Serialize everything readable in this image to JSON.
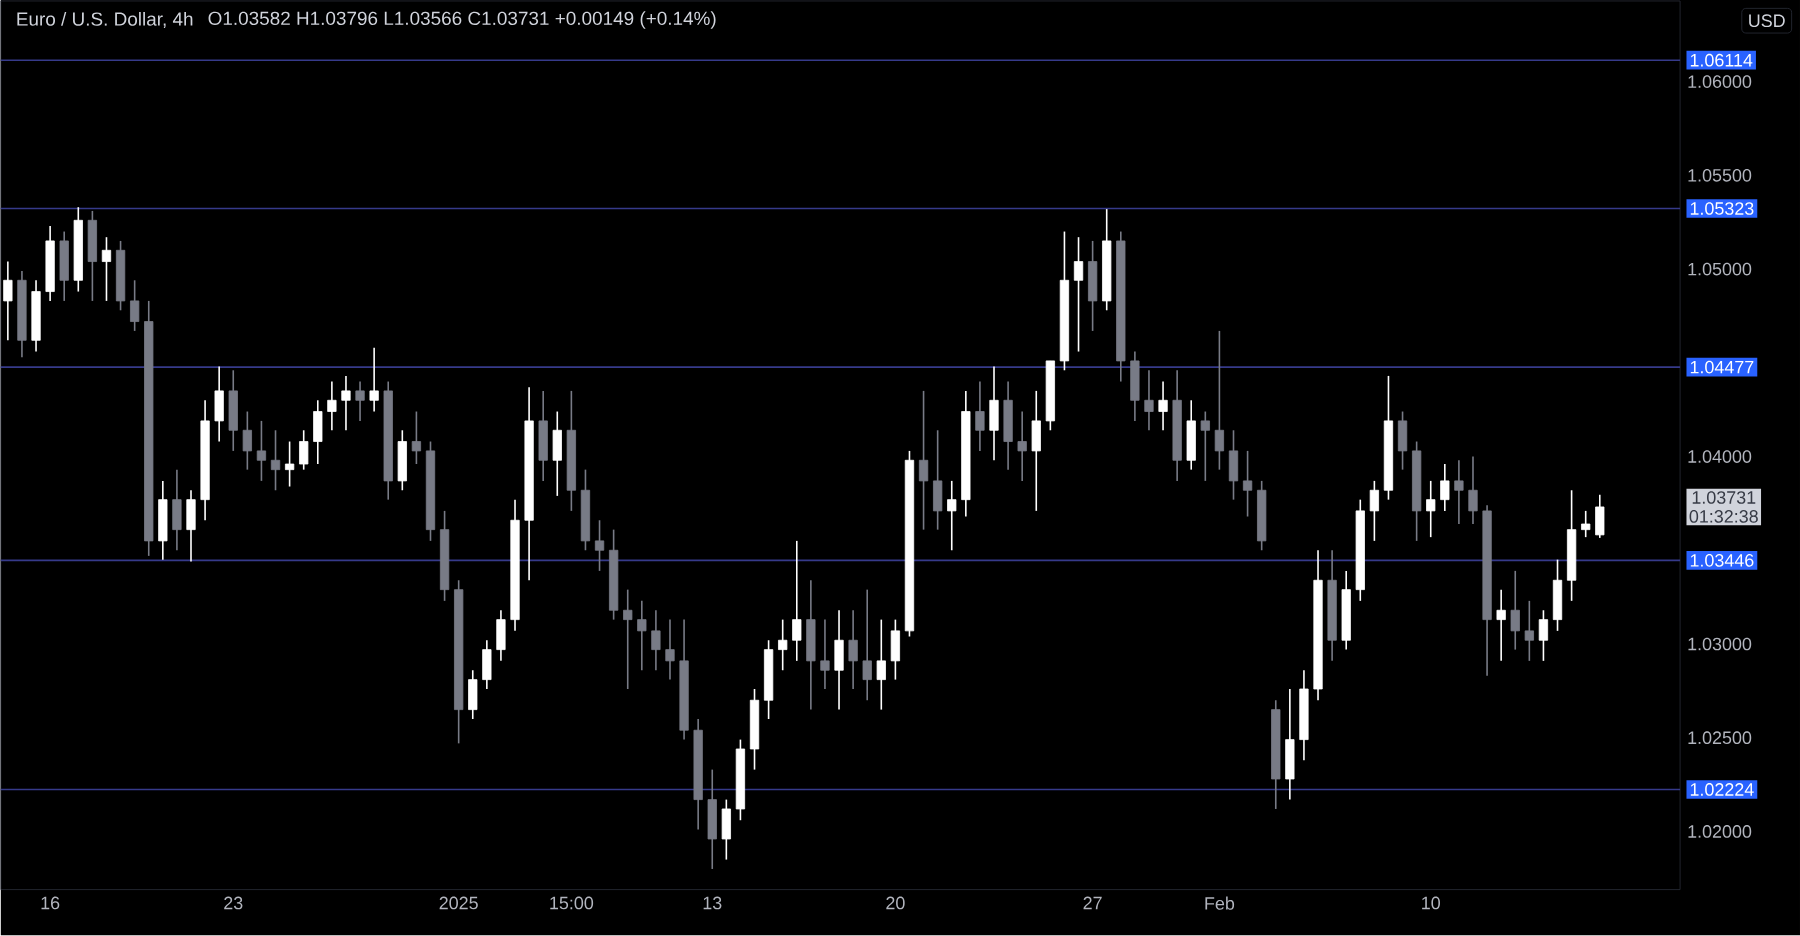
{
  "chart_data": {
    "type": "candlestick",
    "title": "Euro / U.S. Dollar, 4h",
    "subtitle": "O1.03582 H1.03796 L1.03566 C1.03731 +0.00149 (+0.14%)",
    "categories": [
      null,
      null,
      null,
      "16",
      null,
      null,
      null,
      null,
      null,
      null,
      null,
      null,
      null,
      null,
      null,
      null,
      "23",
      null,
      null,
      null,
      null,
      null,
      null,
      null,
      null,
      null,
      null,
      null,
      null,
      null,
      null,
      null,
      "2025",
      null,
      null,
      null,
      null,
      null,
      null,
      null,
      "15:00",
      null,
      null,
      null,
      null,
      null,
      null,
      null,
      null,
      null,
      "13",
      null,
      null,
      null,
      null,
      null,
      null,
      null,
      null,
      null,
      null,
      null,
      null,
      "20",
      null,
      null,
      null,
      null,
      null,
      null,
      null,
      null,
      null,
      null,
      null,
      null,
      null,
      "27",
      null,
      null,
      null,
      null,
      null,
      null,
      null,
      null,
      "Feb",
      null,
      null,
      null,
      null,
      null,
      null,
      null,
      null,
      null,
      null,
      null,
      null,
      null,
      null,
      "10",
      null,
      null,
      null,
      null,
      null,
      null,
      null,
      null,
      null,
      null,
      null,
      null
    ],
    "colors": [
      "#ffffff",
      "#787b86",
      "#ffffff",
      "#ffffff",
      "#787b86",
      "#ffffff",
      "#787b86",
      "#ffffff",
      "#787b86",
      "#787b86",
      "#787b86",
      "#ffffff",
      "#787b86",
      "#ffffff",
      "#ffffff",
      "#ffffff",
      "#787b86",
      "#787b86",
      "#787b86",
      "#787b86",
      "#ffffff",
      "#ffffff",
      "#ffffff",
      "#ffffff",
      "#ffffff",
      "#787b86",
      "#ffffff",
      "#787b86",
      "#ffffff",
      "#787b86",
      "#787b86",
      "#787b86",
      "#787b86",
      "#ffffff",
      "#ffffff",
      "#ffffff",
      "#ffffff",
      "#ffffff",
      "#787b86",
      "#ffffff",
      "#787b86",
      "#787b86",
      "#787b86",
      "#787b86",
      "#787b86",
      "#787b86",
      "#787b86",
      "#787b86",
      "#787b86",
      "#787b86",
      "#787b86",
      "#ffffff",
      "#ffffff",
      "#ffffff",
      "#ffffff",
      "#ffffff",
      "#ffffff",
      "#787b86",
      "#787b86",
      "#ffffff",
      "#787b86",
      "#787b86",
      "#ffffff",
      "#ffffff",
      "#ffffff",
      "#787b86",
      "#787b86",
      "#ffffff",
      "#ffffff",
      "#787b86",
      "#ffffff",
      "#787b86",
      "#787b86",
      "#ffffff",
      "#ffffff",
      "#ffffff",
      "#ffffff",
      "#787b86",
      "#ffffff",
      "#787b86",
      "#787b86",
      "#787b86",
      "#ffffff",
      "#787b86",
      "#ffffff",
      "#787b86",
      "#787b86",
      "#787b86",
      "#787b86",
      "#787b86",
      "#787b86",
      "#ffffff",
      "#ffffff",
      "#ffffff",
      "#787b86",
      "#ffffff",
      "#ffffff",
      "#ffffff",
      "#ffffff",
      "#787b86",
      "#787b86",
      "#ffffff",
      "#ffffff",
      "#787b86",
      "#787b86",
      "#787b86",
      "#ffffff",
      "#787b86",
      "#787b86",
      "#ffffff",
      "#ffffff",
      "#ffffff",
      "#ffffff",
      "#ffffff"
    ],
    "ohlc": [
      [
        1.0483,
        1.0504,
        1.0462,
        1.0494
      ],
      [
        1.0494,
        1.0499,
        1.0453,
        1.0462
      ],
      [
        1.0462,
        1.0494,
        1.0456,
        1.0488
      ],
      [
        1.0488,
        1.0523,
        1.0483,
        1.0515
      ],
      [
        1.0515,
        1.052,
        1.0483,
        1.0494
      ],
      [
        1.0494,
        1.0533,
        1.0488,
        1.0526
      ],
      [
        1.0526,
        1.0531,
        1.0483,
        1.0504
      ],
      [
        1.0504,
        1.0517,
        1.0483,
        1.051
      ],
      [
        1.051,
        1.0515,
        1.0478,
        1.0483
      ],
      [
        1.0483,
        1.0494,
        1.0467,
        1.0472
      ],
      [
        1.0472,
        1.0483,
        1.0347,
        1.0355
      ],
      [
        1.0355,
        1.0387,
        1.0345,
        1.0377
      ],
      [
        1.0377,
        1.0393,
        1.035,
        1.0361
      ],
      [
        1.0361,
        1.0382,
        1.0344,
        1.0377
      ],
      [
        1.0377,
        1.043,
        1.0366,
        1.0419
      ],
      [
        1.0419,
        1.0448,
        1.0408,
        1.0435
      ],
      [
        1.0435,
        1.0446,
        1.0403,
        1.0414
      ],
      [
        1.0414,
        1.0424,
        1.0393,
        1.0403
      ],
      [
        1.0403,
        1.0419,
        1.0387,
        1.0398
      ],
      [
        1.0398,
        1.0414,
        1.0382,
        1.0393
      ],
      [
        1.0393,
        1.0408,
        1.0384,
        1.0396
      ],
      [
        1.0396,
        1.0414,
        1.0393,
        1.0408
      ],
      [
        1.0408,
        1.043,
        1.0396,
        1.0424
      ],
      [
        1.0424,
        1.044,
        1.0414,
        1.043
      ],
      [
        1.043,
        1.0443,
        1.0414,
        1.0435
      ],
      [
        1.0435,
        1.044,
        1.0419,
        1.043
      ],
      [
        1.043,
        1.0458,
        1.0424,
        1.0435
      ],
      [
        1.0435,
        1.044,
        1.0377,
        1.0387
      ],
      [
        1.0387,
        1.0414,
        1.0382,
        1.0408
      ],
      [
        1.0408,
        1.0424,
        1.0396,
        1.0403
      ],
      [
        1.0403,
        1.0408,
        1.0355,
        1.0361
      ],
      [
        1.0361,
        1.0371,
        1.0323,
        1.0329
      ],
      [
        1.0329,
        1.0334,
        1.0247,
        1.0265
      ],
      [
        1.0265,
        1.0286,
        1.026,
        1.0281
      ],
      [
        1.0281,
        1.0302,
        1.0276,
        1.0297
      ],
      [
        1.0297,
        1.0318,
        1.0291,
        1.0313
      ],
      [
        1.0313,
        1.0377,
        1.0307,
        1.0366
      ],
      [
        1.0366,
        1.0437,
        1.0334,
        1.0419
      ],
      [
        1.0419,
        1.0435,
        1.0387,
        1.0398
      ],
      [
        1.0398,
        1.0424,
        1.0379,
        1.0414
      ],
      [
        1.0414,
        1.0435,
        1.0371,
        1.0382
      ],
      [
        1.0382,
        1.0393,
        1.035,
        1.0355
      ],
      [
        1.0355,
        1.0366,
        1.0339,
        1.035
      ],
      [
        1.035,
        1.0361,
        1.0313,
        1.0318
      ],
      [
        1.0318,
        1.0329,
        1.0276,
        1.0313
      ],
      [
        1.0313,
        1.0323,
        1.0286,
        1.0307
      ],
      [
        1.0307,
        1.0318,
        1.0286,
        1.0297
      ],
      [
        1.0297,
        1.0313,
        1.0281,
        1.0291
      ],
      [
        1.0291,
        1.0313,
        1.0249,
        1.0254
      ],
      [
        1.0254,
        1.026,
        1.0201,
        1.0217
      ],
      [
        1.0217,
        1.0233,
        1.018,
        1.0196
      ],
      [
        1.0196,
        1.0217,
        1.0185,
        1.0212
      ],
      [
        1.0212,
        1.0249,
        1.0206,
        1.0244
      ],
      [
        1.0244,
        1.0276,
        1.0233,
        1.027
      ],
      [
        1.027,
        1.0302,
        1.026,
        1.0297
      ],
      [
        1.0297,
        1.0313,
        1.0286,
        1.0302
      ],
      [
        1.0302,
        1.0355,
        1.0291,
        1.0313
      ],
      [
        1.0313,
        1.0334,
        1.0265,
        1.0291
      ],
      [
        1.0291,
        1.0313,
        1.0276,
        1.0286
      ],
      [
        1.0286,
        1.0318,
        1.0265,
        1.0302
      ],
      [
        1.0302,
        1.0318,
        1.0276,
        1.0291
      ],
      [
        1.0291,
        1.0329,
        1.027,
        1.0281
      ],
      [
        1.0281,
        1.0313,
        1.0265,
        1.0291
      ],
      [
        1.0291,
        1.0313,
        1.0281,
        1.0307
      ],
      [
        1.0307,
        1.0403,
        1.0304,
        1.0398
      ],
      [
        1.0398,
        1.0435,
        1.0361,
        1.0387
      ],
      [
        1.0387,
        1.0414,
        1.0361,
        1.0371
      ],
      [
        1.0371,
        1.0387,
        1.035,
        1.0377
      ],
      [
        1.0377,
        1.0435,
        1.0368,
        1.0424
      ],
      [
        1.0424,
        1.044,
        1.0403,
        1.0414
      ],
      [
        1.0414,
        1.0448,
        1.0398,
        1.043
      ],
      [
        1.043,
        1.044,
        1.0393,
        1.0408
      ],
      [
        1.0408,
        1.0424,
        1.0387,
        1.0403
      ],
      [
        1.0403,
        1.0435,
        1.0371,
        1.0419
      ],
      [
        1.0419,
        1.0451,
        1.0414,
        1.0451
      ],
      [
        1.0451,
        1.052,
        1.0446,
        1.0494
      ],
      [
        1.0494,
        1.0517,
        1.0456,
        1.0504
      ],
      [
        1.0504,
        1.0515,
        1.0467,
        1.0483
      ],
      [
        1.0483,
        1.0532,
        1.0478,
        1.0515
      ],
      [
        1.0515,
        1.052,
        1.044,
        1.0451
      ],
      [
        1.0451,
        1.0456,
        1.0419,
        1.043
      ],
      [
        1.043,
        1.0446,
        1.0414,
        1.0424
      ],
      [
        1.0424,
        1.044,
        1.0414,
        1.043
      ],
      [
        1.043,
        1.0446,
        1.0387,
        1.0398
      ],
      [
        1.0398,
        1.043,
        1.0393,
        1.0419
      ],
      [
        1.0419,
        1.0424,
        1.0387,
        1.0414
      ],
      [
        1.0414,
        1.0467,
        1.0393,
        1.0403
      ],
      [
        1.0403,
        1.0414,
        1.0377,
        1.0387
      ],
      [
        1.0387,
        1.0403,
        1.0368,
        1.0382
      ],
      [
        1.0382,
        1.0387,
        1.035,
        1.0355
      ],
      [
        1.0265,
        1.027,
        1.0212,
        1.0228
      ],
      [
        1.0228,
        1.0276,
        1.0217,
        1.0249
      ],
      [
        1.0249,
        1.0286,
        1.0238,
        1.0276
      ],
      [
        1.0276,
        1.035,
        1.027,
        1.0334
      ],
      [
        1.0334,
        1.035,
        1.0291,
        1.0302
      ],
      [
        1.0302,
        1.0339,
        1.0297,
        1.0329
      ],
      [
        1.0329,
        1.0377,
        1.0323,
        1.0371
      ],
      [
        1.0371,
        1.0387,
        1.0355,
        1.0382
      ],
      [
        1.0382,
        1.0443,
        1.0377,
        1.0419
      ],
      [
        1.0419,
        1.0424,
        1.0393,
        1.0403
      ],
      [
        1.0403,
        1.0408,
        1.0355,
        1.0371
      ],
      [
        1.0371,
        1.0387,
        1.0357,
        1.0377
      ],
      [
        1.0377,
        1.0396,
        1.0371,
        1.0387
      ],
      [
        1.0387,
        1.0398,
        1.0364,
        1.0382
      ],
      [
        1.0382,
        1.04,
        1.0364,
        1.0371
      ],
      [
        1.0371,
        1.0374,
        1.0283,
        1.0313
      ],
      [
        1.0313,
        1.0329,
        1.0291,
        1.0318
      ],
      [
        1.0318,
        1.0339,
        1.0297,
        1.0307
      ],
      [
        1.0307,
        1.0323,
        1.0291,
        1.0302
      ],
      [
        1.0302,
        1.0318,
        1.0291,
        1.0313
      ],
      [
        1.0313,
        1.0345,
        1.0307,
        1.0334
      ],
      [
        1.0334,
        1.0382,
        1.0323,
        1.0361
      ],
      [
        1.0361,
        1.0371,
        1.0357,
        1.0364
      ],
      [
        1.03582,
        1.03796,
        1.03566,
        1.03731
      ]
    ],
    "ylim": [
      1.0169,
      1.0643
    ],
    "yticks": [
      {
        "value": 1.02,
        "label": "1.02000"
      },
      {
        "value": 1.025,
        "label": "1.02500"
      },
      {
        "value": 1.03,
        "label": "1.03000"
      },
      {
        "value": 1.04,
        "label": "1.04000"
      },
      {
        "value": 1.05,
        "label": "1.05000"
      },
      {
        "value": 1.055,
        "label": "1.05500"
      },
      {
        "value": 1.06,
        "label": "1.06000"
      }
    ],
    "ref_lines": [
      {
        "axis": "y",
        "value": 1.06114,
        "label": "1.06114",
        "color": "#363a8a"
      },
      {
        "axis": "y",
        "value": 1.05323,
        "label": "1.05323",
        "color": "#363a8a"
      },
      {
        "axis": "y",
        "value": 1.04477,
        "label": "1.04477",
        "color": "#363a8a"
      },
      {
        "axis": "y",
        "value": 1.03446,
        "label": "1.03446",
        "color": "#363a8a"
      },
      {
        "axis": "y",
        "value": 1.02224,
        "label": "1.02224",
        "color": "#363a8a"
      }
    ],
    "annotations": [
      "USD",
      "1.03731",
      "01:32:38"
    ]
  }
}
